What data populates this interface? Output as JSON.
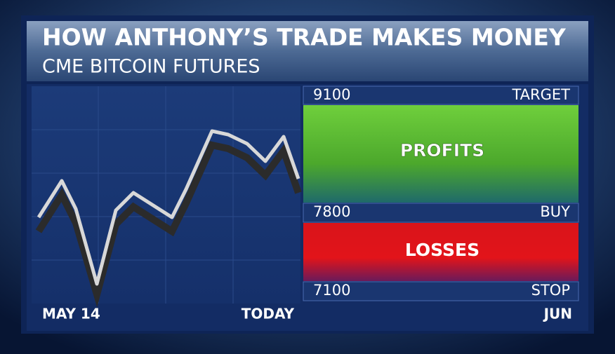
{
  "header": {
    "title": "HOW ANTHONY’S TRADE MAKES MONEY",
    "subtitle": "CME BITCOIN FUTURES"
  },
  "levels": [
    {
      "price": "9100",
      "label": "TARGET"
    },
    {
      "price": "7800",
      "label": "BUY"
    },
    {
      "price": "7100",
      "label": "STOP"
    }
  ],
  "zones": {
    "profit": "PROFITS",
    "loss": "LOSSES"
  },
  "x_labels": [
    "MAY 14",
    "TODAY",
    "JUN"
  ]
}
